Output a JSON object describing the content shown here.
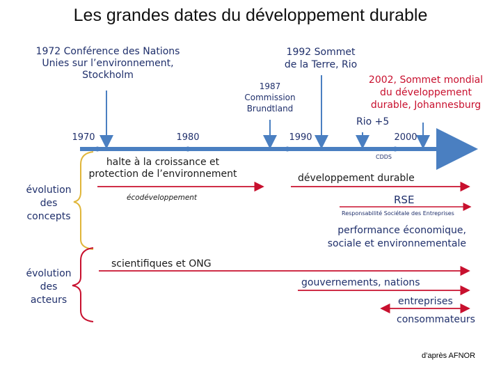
{
  "title": "Les grandes dates du développement durable",
  "events": {
    "e1972": [
      "1972 Conférence des Nations",
      "Unies sur l’environnement,",
      "Stockholm"
    ],
    "e1992": [
      "1992 Sommet",
      "de la Terre, Rio"
    ],
    "e1987": [
      "1987",
      "Commission",
      "Brundtland"
    ],
    "e2002": [
      "2002, Sommet mondial",
      "du développement",
      "durable, Johannesburg"
    ],
    "rio5": "Rio +5"
  },
  "timeline": {
    "ticks": [
      "1970",
      "1980",
      "1990",
      "2000"
    ],
    "cdds": "CDDS"
  },
  "concepts": {
    "group_label": [
      "évolution",
      "des",
      "concepts"
    ],
    "halte": [
      "halte à la croissance et",
      "protection de l’environnement"
    ],
    "ecodev": "écodéveloppement",
    "dd": "développement durable",
    "rse": "RSE",
    "rse_full": "Responsabilité Sociétale des Entreprises",
    "perf": [
      "performance économique,",
      "sociale et environnementale"
    ]
  },
  "actors": {
    "group_label": [
      "évolution",
      "des",
      "acteurs"
    ],
    "sci": "scientifiques et ONG",
    "gov": "gouvernements, nations",
    "ent": "entreprises",
    "cons": "consommateurs"
  },
  "source": "d’après AFNOR",
  "colors": {
    "blue": "#4a7fc1",
    "navy": "#1f2f6b",
    "red": "#c8102e",
    "gold": "#e0b63a"
  }
}
